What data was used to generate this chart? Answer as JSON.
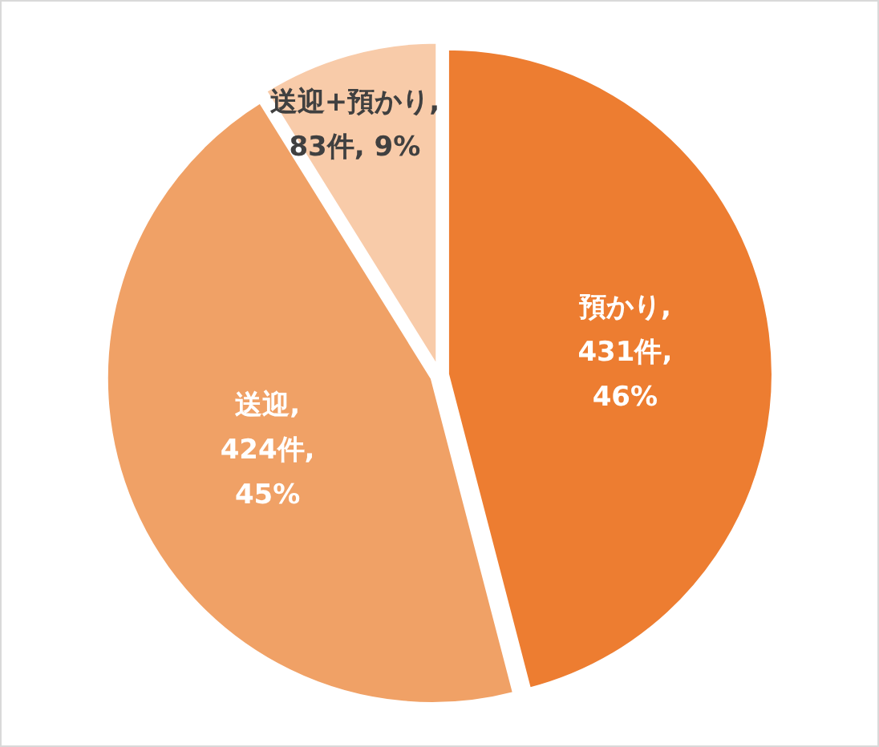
{
  "chart_data": {
    "type": "pie",
    "categories": [
      "預かり",
      "送迎",
      "送迎+預かり"
    ],
    "values": [
      431,
      424,
      83
    ],
    "colors": [
      "#ed7d31",
      "#f0a166",
      "#f8cba9"
    ],
    "value_labels": [
      ", 431件, 46%",
      ", 424件, 45%",
      ", 83件, 9%"
    ]
  }
}
